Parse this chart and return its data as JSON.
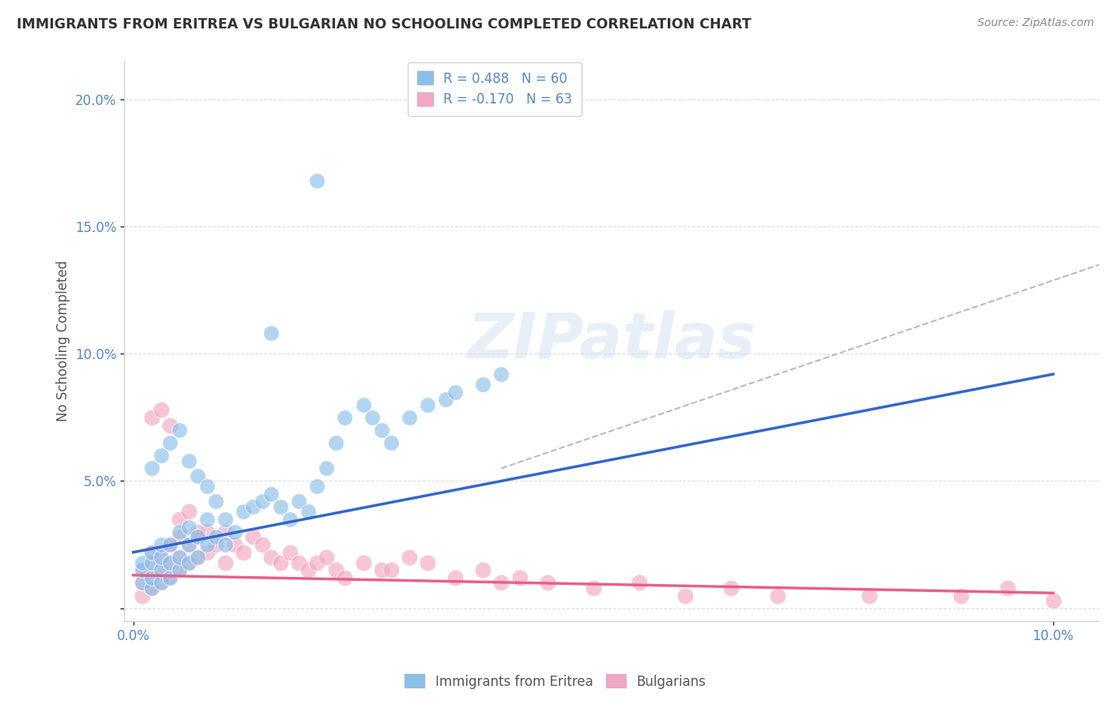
{
  "title": "IMMIGRANTS FROM ERITREA VS BULGARIAN NO SCHOOLING COMPLETED CORRELATION CHART",
  "source": "Source: ZipAtlas.com",
  "ylabel_label": "No Schooling Completed",
  "xlim": [
    -0.001,
    0.105
  ],
  "ylim": [
    -0.005,
    0.215
  ],
  "legend1_r": "0.488",
  "legend1_n": "60",
  "legend2_r": "-0.170",
  "legend2_n": "63",
  "color_eritrea": "#8bbfe8",
  "color_bulgarian": "#f2a8c2",
  "color_trend_eritrea": "#3366cc",
  "color_trend_bulgarian": "#e8608a",
  "color_trend_dashed": "#bbbbbb",
  "background_color": "#ffffff",
  "watermark": "ZIPatlas",
  "eritrea_trend_x0": 0.0,
  "eritrea_trend_y0": 0.022,
  "eritrea_trend_x1": 0.1,
  "eritrea_trend_y1": 0.092,
  "bulgarian_trend_x0": 0.0,
  "bulgarian_trend_y0": 0.013,
  "bulgarian_trend_x1": 0.1,
  "bulgarian_trend_y1": 0.006,
  "dashed_trend_x0": 0.04,
  "dashed_trend_y0": 0.055,
  "dashed_trend_x1": 0.105,
  "dashed_trend_y1": 0.135,
  "eritrea_x": [
    0.001,
    0.001,
    0.001,
    0.002,
    0.002,
    0.002,
    0.002,
    0.003,
    0.003,
    0.003,
    0.003,
    0.004,
    0.004,
    0.004,
    0.005,
    0.005,
    0.005,
    0.006,
    0.006,
    0.006,
    0.007,
    0.007,
    0.008,
    0.008,
    0.009,
    0.01,
    0.01,
    0.011,
    0.012,
    0.013,
    0.014,
    0.015,
    0.016,
    0.017,
    0.018,
    0.019,
    0.02,
    0.021,
    0.022,
    0.023,
    0.025,
    0.026,
    0.027,
    0.028,
    0.03,
    0.032,
    0.034,
    0.035,
    0.038,
    0.04,
    0.002,
    0.003,
    0.004,
    0.005,
    0.006,
    0.007,
    0.008,
    0.009,
    0.015,
    0.02
  ],
  "eritrea_y": [
    0.01,
    0.015,
    0.018,
    0.008,
    0.012,
    0.018,
    0.022,
    0.01,
    0.015,
    0.02,
    0.025,
    0.012,
    0.018,
    0.025,
    0.015,
    0.02,
    0.03,
    0.018,
    0.025,
    0.032,
    0.02,
    0.028,
    0.025,
    0.035,
    0.028,
    0.025,
    0.035,
    0.03,
    0.038,
    0.04,
    0.042,
    0.045,
    0.04,
    0.035,
    0.042,
    0.038,
    0.048,
    0.055,
    0.065,
    0.075,
    0.08,
    0.075,
    0.07,
    0.065,
    0.075,
    0.08,
    0.082,
    0.085,
    0.088,
    0.092,
    0.055,
    0.06,
    0.065,
    0.07,
    0.058,
    0.052,
    0.048,
    0.042,
    0.108,
    0.168
  ],
  "bulgarian_x": [
    0.001,
    0.001,
    0.001,
    0.002,
    0.002,
    0.002,
    0.002,
    0.003,
    0.003,
    0.003,
    0.004,
    0.004,
    0.004,
    0.005,
    0.005,
    0.005,
    0.006,
    0.006,
    0.007,
    0.007,
    0.008,
    0.008,
    0.009,
    0.01,
    0.01,
    0.011,
    0.012,
    0.013,
    0.014,
    0.015,
    0.016,
    0.017,
    0.018,
    0.019,
    0.02,
    0.021,
    0.022,
    0.023,
    0.025,
    0.027,
    0.028,
    0.03,
    0.032,
    0.035,
    0.038,
    0.04,
    0.042,
    0.045,
    0.05,
    0.055,
    0.06,
    0.065,
    0.07,
    0.08,
    0.09,
    0.095,
    0.1,
    0.002,
    0.003,
    0.004,
    0.005,
    0.006,
    0.007
  ],
  "bulgarian_y": [
    0.005,
    0.01,
    0.015,
    0.008,
    0.012,
    0.018,
    0.022,
    0.01,
    0.015,
    0.02,
    0.012,
    0.018,
    0.025,
    0.015,
    0.02,
    0.028,
    0.018,
    0.025,
    0.02,
    0.028,
    0.022,
    0.03,
    0.025,
    0.018,
    0.03,
    0.025,
    0.022,
    0.028,
    0.025,
    0.02,
    0.018,
    0.022,
    0.018,
    0.015,
    0.018,
    0.02,
    0.015,
    0.012,
    0.018,
    0.015,
    0.015,
    0.02,
    0.018,
    0.012,
    0.015,
    0.01,
    0.012,
    0.01,
    0.008,
    0.01,
    0.005,
    0.008,
    0.005,
    0.005,
    0.005,
    0.008,
    0.003,
    0.075,
    0.078,
    0.072,
    0.035,
    0.038,
    0.03
  ]
}
